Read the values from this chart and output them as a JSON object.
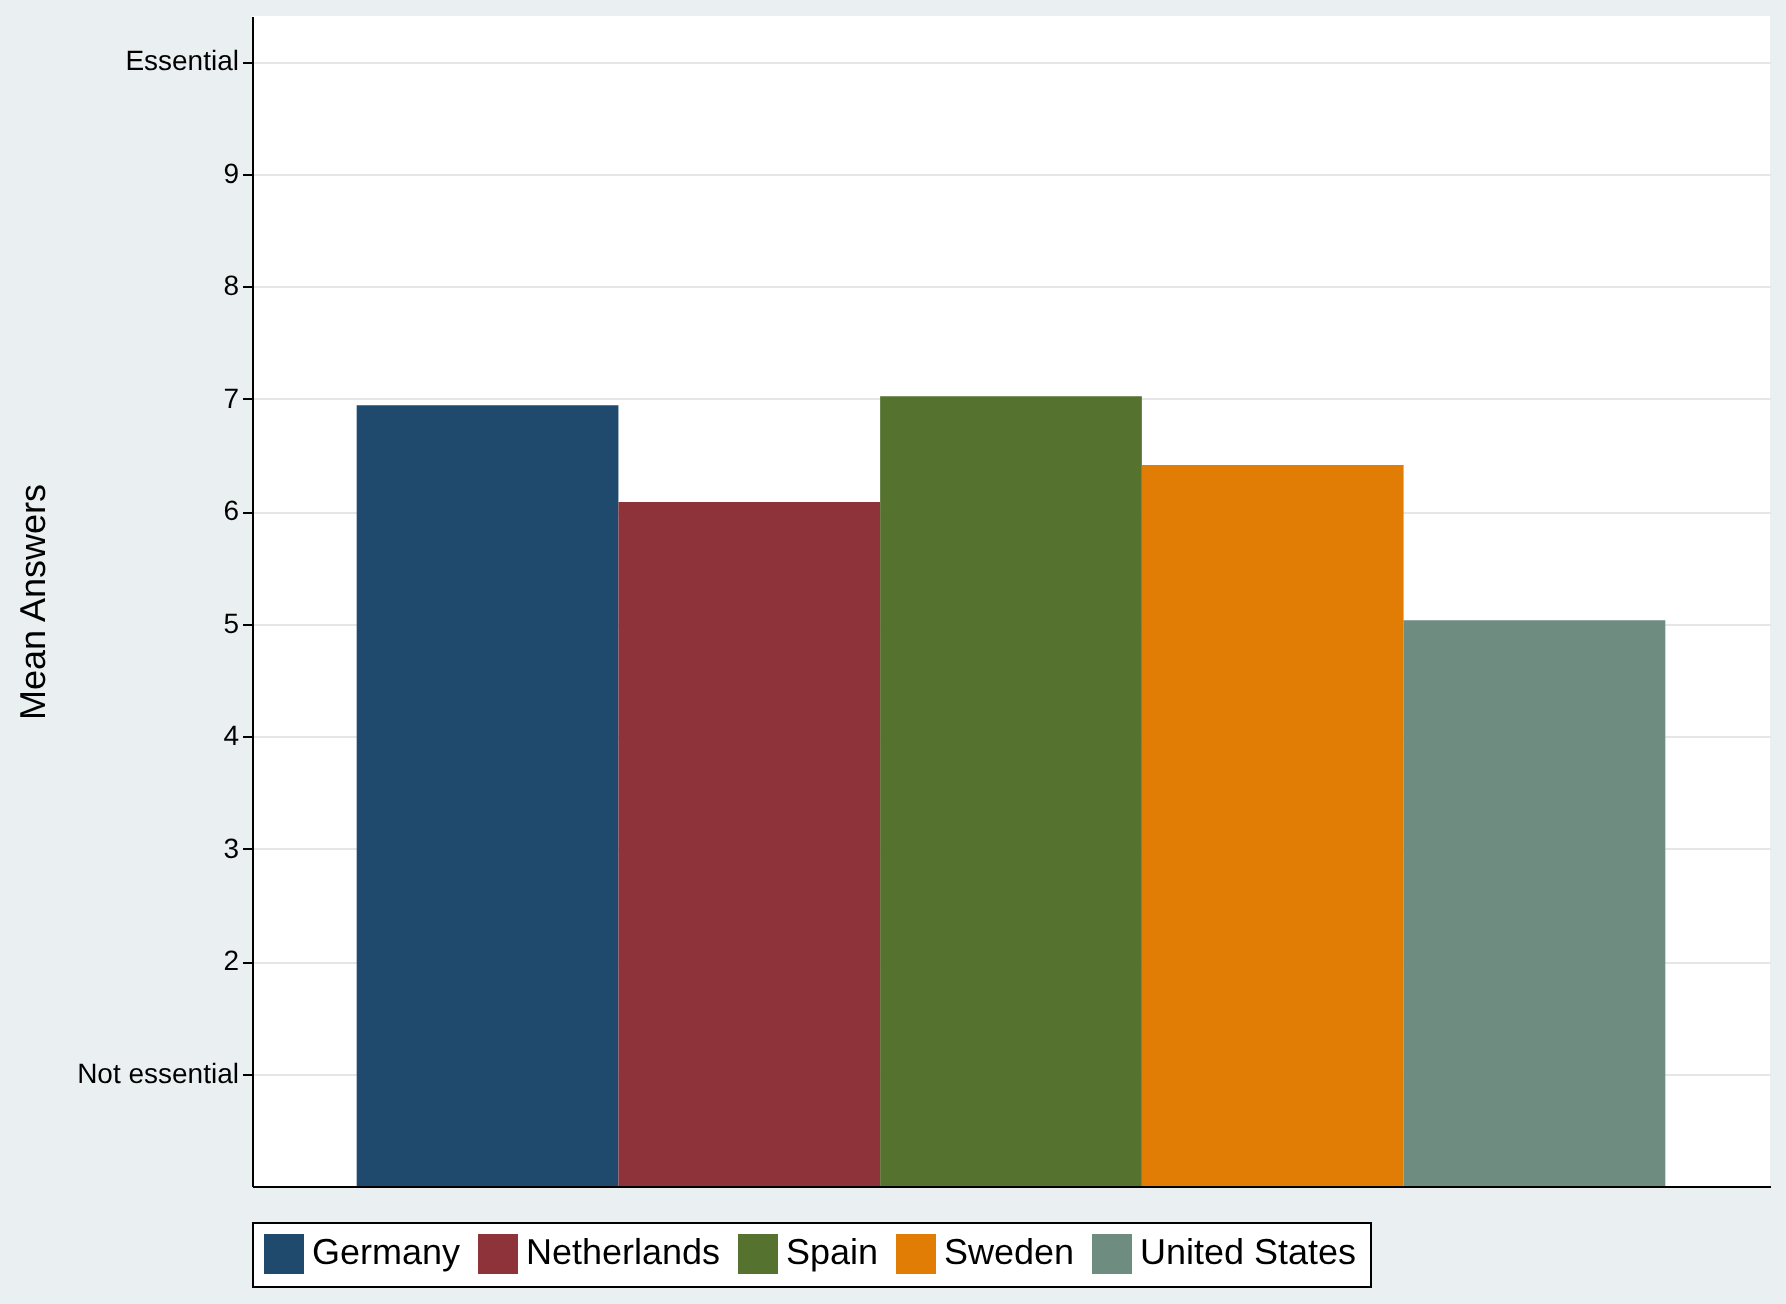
{
  "chart_data": {
    "type": "bar",
    "ylabel": "Mean Answers",
    "categories": [
      null
    ],
    "series": [
      {
        "name": "Germany",
        "color": "#1f4a6e",
        "values": [
          6.94
        ]
      },
      {
        "name": "Netherlands",
        "color": "#8e3339",
        "values": [
          6.08
        ]
      },
      {
        "name": "Spain",
        "color": "#56722f",
        "values": [
          7.02
        ]
      },
      {
        "name": "Sweden",
        "color": "#e17c05",
        "values": [
          6.41
        ]
      },
      {
        "name": "United States",
        "color": "#6e8c80",
        "values": [
          5.03
        ]
      }
    ],
    "ylim": [
      0,
      10.4
    ],
    "yticks": [
      {
        "value": 1,
        "label": "Not essential"
      },
      2,
      3,
      4,
      5,
      6,
      7,
      8,
      9,
      {
        "value": 10,
        "label": "Essential"
      }
    ],
    "grid": "y",
    "legend": "bottom",
    "tick_labels": "y"
  }
}
